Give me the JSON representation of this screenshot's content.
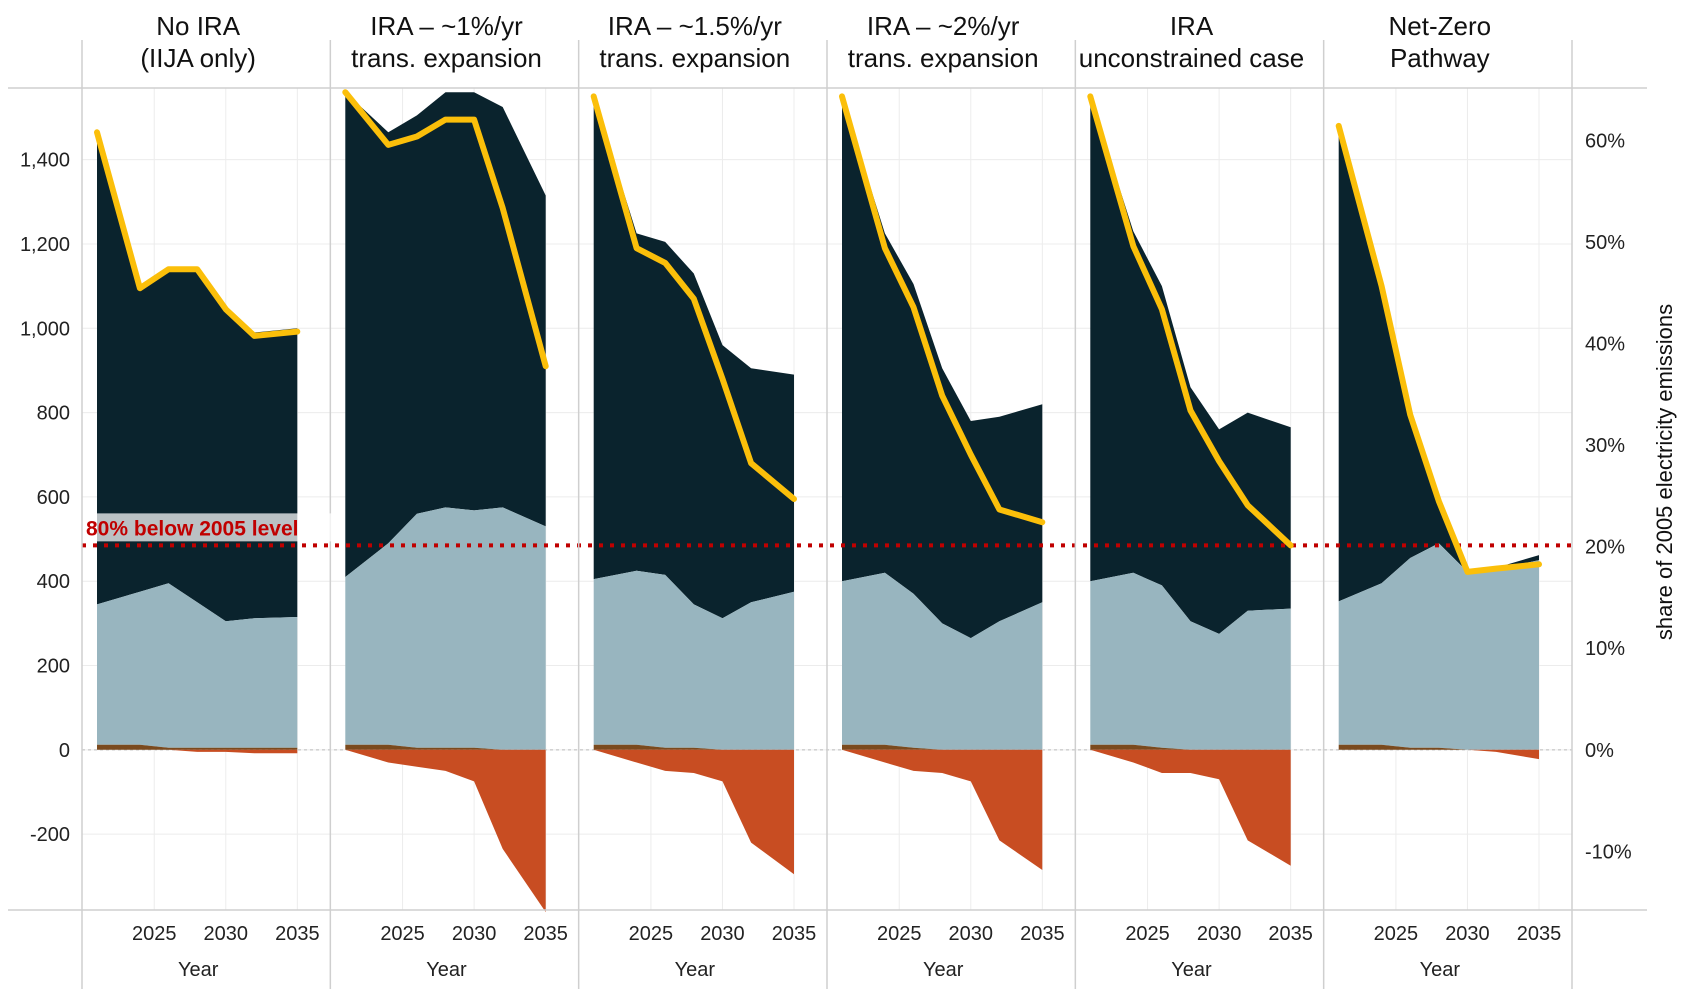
{
  "chart_data": {
    "type": "area",
    "x_label": "Year",
    "x_ticks": [
      2025,
      2030,
      2035
    ],
    "xlim": [
      2020.5,
      2036
    ],
    "ylim": [
      -380,
      1570
    ],
    "y_ticks": [
      -200,
      0,
      200,
      400,
      600,
      800,
      1000,
      1200,
      1400
    ],
    "y_tick_labels": [
      "-200",
      "0",
      "200",
      "400",
      "600",
      "800",
      "1,000",
      "1,200",
      "1,400"
    ],
    "y2_label": "share of 2005 electricity emissions",
    "y2_ticks": [
      -10,
      0,
      10,
      20,
      30,
      40,
      50,
      60
    ],
    "y2_tick_labels": [
      "-10%",
      "0%",
      "10%",
      "20%",
      "30%",
      "40%",
      "50%",
      "60%"
    ],
    "y2_per_percent": 24.1,
    "reference_line": {
      "value": 485,
      "label": "80% below 2005 level",
      "color": "#c00000"
    },
    "grid": true,
    "colors": {
      "top_band": "#0a232d",
      "middle_band": "#98b5bf",
      "small_positive": "#7a4a1e",
      "negative": "#c84d22",
      "net_line": "#fbbf0a"
    },
    "panels": [
      {
        "title_lines": [
          "No IRA",
          "(IIJA only)"
        ],
        "x": [
          2021,
          2024,
          2026,
          2028,
          2030,
          2032,
          2035
        ],
        "small_positive": [
          12,
          12,
          5,
          5,
          5,
          5,
          5
        ],
        "middle_top": [
          345,
          375,
          395,
          350,
          305,
          312,
          315
        ],
        "total_top": [
          1465,
          1095,
          1140,
          1140,
          1050,
          990,
          1000
        ],
        "negative": [
          0,
          0,
          0,
          -5,
          -5,
          -8,
          -8
        ],
        "net_line": [
          1465,
          1095,
          1140,
          1140,
          1045,
          982,
          992
        ]
      },
      {
        "title_lines": [
          "IRA – ~1%/yr",
          "trans. expansion"
        ],
        "x": [
          2021,
          2024,
          2026,
          2028,
          2030,
          2032,
          2035
        ],
        "small_positive": [
          12,
          12,
          5,
          5,
          5,
          0,
          0
        ],
        "middle_top": [
          410,
          490,
          560,
          575,
          568,
          575,
          530
        ],
        "total_top": [
          1560,
          1465,
          1505,
          1560,
          1560,
          1525,
          1315
        ],
        "negative": [
          0,
          -30,
          -40,
          -50,
          -75,
          -235,
          -385
        ],
        "net_line": [
          1560,
          1435,
          1455,
          1495,
          1495,
          1285,
          910
        ]
      },
      {
        "title_lines": [
          "IRA – ~1.5%/yr",
          "trans. expansion"
        ],
        "x": [
          2021,
          2024,
          2026,
          2028,
          2030,
          2032,
          2035
        ],
        "small_positive": [
          12,
          12,
          5,
          5,
          0,
          0,
          0
        ],
        "middle_top": [
          405,
          425,
          415,
          345,
          312,
          350,
          375
        ],
        "total_top": [
          1550,
          1225,
          1205,
          1130,
          960,
          905,
          890
        ],
        "negative": [
          0,
          -30,
          -50,
          -55,
          -75,
          -220,
          -295
        ],
        "net_line": [
          1550,
          1190,
          1155,
          1070,
          880,
          680,
          595
        ]
      },
      {
        "title_lines": [
          "IRA – ~2%/yr",
          "trans. expansion"
        ],
        "x": [
          2021,
          2024,
          2026,
          2028,
          2030,
          2032,
          2035
        ],
        "small_positive": [
          12,
          12,
          5,
          0,
          0,
          0,
          0
        ],
        "middle_top": [
          400,
          420,
          370,
          300,
          265,
          305,
          350
        ],
        "total_top": [
          1550,
          1225,
          1105,
          905,
          780,
          790,
          820
        ],
        "negative": [
          0,
          -30,
          -50,
          -55,
          -75,
          -215,
          -285
        ],
        "net_line": [
          1550,
          1190,
          1050,
          840,
          700,
          570,
          540
        ]
      },
      {
        "title_lines": [
          "IRA",
          "unconstrained case"
        ],
        "x": [
          2021,
          2024,
          2026,
          2028,
          2030,
          2032,
          2035
        ],
        "small_positive": [
          12,
          12,
          5,
          0,
          0,
          0,
          0
        ],
        "middle_top": [
          400,
          420,
          390,
          305,
          275,
          330,
          335
        ],
        "total_top": [
          1550,
          1230,
          1100,
          860,
          760,
          800,
          765
        ],
        "negative": [
          0,
          -30,
          -55,
          -55,
          -70,
          -215,
          -275
        ],
        "net_line": [
          1550,
          1195,
          1045,
          805,
          685,
          580,
          485
        ]
      },
      {
        "title_lines": [
          "Net-Zero",
          "Pathway"
        ],
        "x": [
          2021,
          2024,
          2026,
          2028,
          2030,
          2032,
          2035
        ],
        "small_positive": [
          12,
          12,
          5,
          5,
          0,
          0,
          0
        ],
        "middle_top": [
          352,
          395,
          455,
          490,
          422,
          428,
          450
        ],
        "total_top": [
          1480,
          1100,
          795,
          590,
          422,
          432,
          462
        ],
        "negative": [
          0,
          0,
          0,
          0,
          0,
          -5,
          -22
        ],
        "net_line": [
          1480,
          1100,
          795,
          590,
          422,
          430,
          440
        ]
      }
    ]
  }
}
